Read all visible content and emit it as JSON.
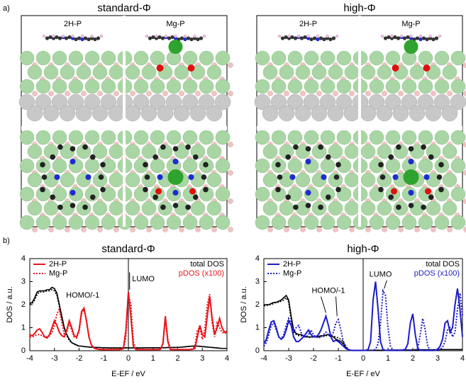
{
  "panel_labels": [
    "a)",
    "b)"
  ],
  "panel_a": [
    {
      "title": "standard-Φ",
      "labels": [
        "2H-P",
        "Mg-P"
      ]
    },
    {
      "title": "high-Φ",
      "labels": [
        "2H-P",
        "Mg-P"
      ]
    }
  ],
  "chart_data": [
    {
      "type": "line",
      "title": "standard-Φ",
      "xlabel": "E-EF / eV",
      "ylabel": "DOS / a.u.",
      "xlim": [
        -4,
        4
      ],
      "xticks": [
        -4,
        -3,
        -2,
        -1,
        0,
        1,
        2,
        3,
        4
      ],
      "ylim": [
        0,
        4
      ],
      "yticks": [
        0,
        1,
        2,
        3,
        4
      ],
      "total_label": "total DOS",
      "pdos_label": "pDOS (x100)",
      "pdos_color": "#e8141b",
      "annotations": [
        "HOMO/-1",
        "LUMO"
      ],
      "x": [
        -4,
        -3.9,
        -3.8,
        -3.7,
        -3.6,
        -3.5,
        -3.4,
        -3.3,
        -3.2,
        -3.1,
        -3,
        -2.9,
        -2.8,
        -2.7,
        -2.6,
        -2.5,
        -2.4,
        -2.3,
        -2.2,
        -2.1,
        -2,
        -1.9,
        -1.8,
        -1.7,
        -1.6,
        -1.5,
        -1.4,
        -1.3,
        -1.2,
        -1.1,
        -1,
        -0.9,
        -0.8,
        -0.7,
        -0.6,
        -0.5,
        -0.4,
        -0.3,
        -0.2,
        -0.1,
        0,
        0.1,
        0.2,
        0.3,
        0.4,
        0.5,
        0.6,
        0.7,
        0.8,
        0.9,
        1,
        1.1,
        1.2,
        1.3,
        1.4,
        1.5,
        1.6,
        1.7,
        1.8,
        1.9,
        2,
        2.1,
        2.2,
        2.3,
        2.4,
        2.5,
        2.6,
        2.7,
        2.8,
        2.9,
        3,
        3.1,
        3.2,
        3.3,
        3.4,
        3.5,
        3.6,
        3.7,
        3.8,
        3.9,
        4
      ],
      "series": [
        {
          "color": "#000000",
          "dashed": false,
          "values": [
            2.05,
            2.1,
            2.3,
            2.55,
            2.6,
            2.6,
            2.6,
            2.65,
            2.65,
            2.75,
            2.7,
            2.5,
            2.0,
            1.5,
            1.0,
            0.7,
            0.5,
            0.35,
            0.3,
            0.25,
            0.2,
            0.2,
            0.18,
            0.17,
            0.16,
            0.15,
            0.15,
            0.14,
            0.14,
            0.13,
            0.13,
            0.13,
            0.12,
            0.12,
            0.12,
            0.12,
            0.12,
            0.12,
            0.12,
            0.12,
            0.12,
            0.12,
            0.12,
            0.12,
            0.12,
            0.12,
            0.12,
            0.13,
            0.13,
            0.13,
            0.13,
            0.13,
            0.13,
            0.13,
            0.13,
            0.13,
            0.14,
            0.14,
            0.14,
            0.14,
            0.15,
            0.15,
            0.16,
            0.17,
            0.18,
            0.19,
            0.2,
            0.2,
            0.2,
            0.19,
            0.18,
            0.17,
            0.16,
            0.15,
            0.14,
            0.13,
            0.12,
            0.11,
            0.1,
            0.1,
            0.1
          ]
        },
        {
          "color": "#000000",
          "dashed": true,
          "values": [
            2.0,
            2.05,
            2.2,
            2.45,
            2.55,
            2.55,
            2.55,
            2.6,
            2.6,
            2.65,
            2.6,
            2.4,
            1.9,
            1.4,
            0.95,
            0.65,
            0.45,
            0.35,
            0.28,
            0.23,
            0.2,
            0.2,
            0.18,
            0.17,
            0.16,
            0.15,
            0.15,
            0.14,
            0.14,
            0.13,
            0.13,
            0.13,
            0.12,
            0.12,
            0.12,
            0.12,
            0.12,
            0.12,
            0.12,
            0.12,
            0.12,
            0.12,
            0.12,
            0.12,
            0.12,
            0.12,
            0.12,
            0.13,
            0.13,
            0.13,
            0.13,
            0.13,
            0.13,
            0.13,
            0.13,
            0.13,
            0.14,
            0.14,
            0.14,
            0.14,
            0.15,
            0.15,
            0.16,
            0.17,
            0.18,
            0.19,
            0.2,
            0.2,
            0.2,
            0.19,
            0.18,
            0.17,
            0.16,
            0.15,
            0.14,
            0.13,
            0.12,
            0.11,
            0.1,
            0.1,
            0.1
          ]
        },
        {
          "name": "2H-P",
          "color": "#e8141b",
          "dashed": false,
          "values": [
            0.7,
            0.65,
            0.75,
            0.9,
            0.95,
            0.8,
            0.6,
            0.55,
            0.7,
            1.0,
            1.3,
            1.1,
            0.8,
            0.65,
            0.6,
            0.9,
            1.3,
            1.0,
            0.65,
            0.6,
            0.9,
            1.7,
            1.85,
            1.3,
            0.6,
            0.25,
            0.12,
            0.08,
            0.06,
            0.05,
            0.05,
            0.05,
            0.05,
            0.05,
            0.05,
            0.05,
            0.05,
            0.06,
            0.1,
            0.9,
            2.55,
            1.5,
            0.2,
            0.06,
            0.05,
            0.05,
            0.05,
            0.05,
            0.05,
            0.05,
            0.05,
            0.05,
            0.05,
            0.06,
            0.3,
            1.5,
            0.4,
            0.06,
            0.05,
            0.05,
            0.05,
            0.05,
            0.05,
            0.05,
            0.05,
            0.05,
            0.06,
            0.1,
            0.6,
            1.1,
            0.7,
            0.6,
            1.5,
            2.35,
            1.4,
            0.7,
            1.0,
            1.4,
            1.0,
            0.8,
            0.85
          ]
        },
        {
          "name": "Mg-P",
          "color": "#e8141b",
          "dashed": true,
          "values": [
            0.6,
            0.6,
            0.65,
            0.7,
            0.7,
            0.65,
            0.6,
            0.6,
            0.65,
            0.8,
            1.1,
            1.6,
            1.8,
            1.2,
            0.7,
            0.8,
            1.2,
            0.9,
            0.6,
            0.55,
            0.85,
            1.6,
            1.8,
            1.3,
            0.6,
            0.25,
            0.12,
            0.08,
            0.06,
            0.05,
            0.05,
            0.05,
            0.05,
            0.05,
            0.05,
            0.05,
            0.05,
            0.06,
            0.08,
            0.6,
            2.4,
            2.0,
            0.4,
            0.06,
            0.05,
            0.05,
            0.05,
            0.05,
            0.05,
            0.05,
            0.05,
            0.05,
            0.05,
            0.06,
            0.3,
            1.4,
            0.5,
            0.06,
            0.05,
            0.05,
            0.05,
            0.05,
            0.05,
            0.05,
            0.05,
            0.05,
            0.08,
            0.2,
            0.9,
            1.0,
            0.5,
            0.9,
            2.0,
            2.45,
            1.2,
            0.6,
            1.2,
            1.0,
            0.8,
            0.75,
            0.8
          ]
        }
      ]
    },
    {
      "type": "line",
      "title": "high-Φ",
      "xlabel": "E-EF / eV",
      "ylabel": "DOS / a.u.",
      "xlim": [
        -4,
        4
      ],
      "xticks": [
        -4,
        -3,
        -2,
        -1,
        0,
        1,
        2,
        3,
        4
      ],
      "ylim": [
        0,
        4
      ],
      "yticks": [
        0,
        1,
        2,
        3,
        4
      ],
      "total_label": "total DOS",
      "pdos_label": "pDOS (x100)",
      "pdos_color": "#1c1cc8",
      "annotations": [
        "HOMO/-1",
        "LUMO"
      ],
      "x": [
        -4,
        -3.9,
        -3.8,
        -3.7,
        -3.6,
        -3.5,
        -3.4,
        -3.3,
        -3.2,
        -3.1,
        -3,
        -2.9,
        -2.8,
        -2.7,
        -2.6,
        -2.5,
        -2.4,
        -2.3,
        -2.2,
        -2.1,
        -2,
        -1.9,
        -1.8,
        -1.7,
        -1.6,
        -1.5,
        -1.4,
        -1.3,
        -1.2,
        -1.1,
        -1,
        -0.9,
        -0.8,
        -0.7,
        -0.6,
        -0.5,
        -0.4,
        -0.3,
        -0.2,
        -0.1,
        0,
        0.1,
        0.2,
        0.3,
        0.4,
        0.5,
        0.6,
        0.7,
        0.8,
        0.9,
        1,
        1.1,
        1.2,
        1.3,
        1.4,
        1.5,
        1.6,
        1.7,
        1.8,
        1.9,
        2,
        2.1,
        2.2,
        2.3,
        2.4,
        2.5,
        2.6,
        2.7,
        2.8,
        2.9,
        3,
        3.1,
        3.2,
        3.3,
        3.4,
        3.5,
        3.6,
        3.7,
        3.8,
        3.9,
        4
      ],
      "series": [
        {
          "color": "#000000",
          "dashed": false,
          "values": [
            2.0,
            2.0,
            2.0,
            2.05,
            2.1,
            2.1,
            2.15,
            2.2,
            2.3,
            2.4,
            2.2,
            1.5,
            0.9,
            0.75,
            0.7,
            0.7,
            0.65,
            0.6,
            0.6,
            0.6,
            0.6,
            0.6,
            0.62,
            0.65,
            0.65,
            0.68,
            0.7,
            0.65,
            0.6,
            0.5,
            0.45,
            0.4,
            0.3,
            0.15,
            0.05,
            0.02,
            0.01,
            0.01,
            0.01,
            0.01,
            0.01,
            0.02,
            0.02,
            0.02,
            0.02,
            0.02,
            0.02,
            0.02,
            0.02,
            0.02,
            0.02,
            0.03,
            0.03,
            0.03,
            0.03,
            0.03,
            0.03,
            0.03,
            0.03,
            0.03,
            0.03,
            0.04,
            0.04,
            0.04,
            0.04,
            0.04,
            0.04,
            0.04,
            0.04,
            0.04,
            0.04,
            0.05,
            0.05,
            0.05,
            0.05,
            0.05,
            0.05,
            0.05,
            0.05,
            0.05,
            0.05
          ]
        },
        {
          "color": "#000000",
          "dashed": true,
          "values": [
            1.95,
            1.95,
            2.0,
            2.0,
            2.05,
            2.1,
            2.1,
            2.15,
            2.2,
            2.3,
            2.1,
            1.3,
            0.85,
            0.7,
            0.65,
            0.65,
            0.6,
            0.6,
            0.58,
            0.58,
            0.6,
            0.6,
            0.6,
            0.62,
            0.62,
            0.65,
            0.65,
            0.65,
            0.62,
            0.6,
            0.55,
            0.5,
            0.4,
            0.2,
            0.06,
            0.02,
            0.01,
            0.01,
            0.01,
            0.01,
            0.01,
            0.02,
            0.02,
            0.02,
            0.02,
            0.02,
            0.02,
            0.02,
            0.02,
            0.02,
            0.02,
            0.03,
            0.03,
            0.03,
            0.03,
            0.03,
            0.03,
            0.03,
            0.03,
            0.03,
            0.03,
            0.04,
            0.04,
            0.04,
            0.04,
            0.04,
            0.04,
            0.04,
            0.04,
            0.04,
            0.04,
            0.05,
            0.05,
            0.05,
            0.05,
            0.05,
            0.05,
            0.05,
            0.05,
            0.05,
            0.05
          ]
        },
        {
          "name": "2H-P",
          "color": "#1c1cc8",
          "dashed": false,
          "values": [
            0.3,
            0.5,
            0.9,
            1.25,
            1.3,
            1.0,
            0.6,
            0.5,
            0.6,
            0.9,
            1.3,
            1.1,
            0.6,
            0.4,
            0.4,
            0.5,
            0.6,
            0.75,
            0.9,
            0.7,
            0.6,
            0.6,
            0.7,
            0.9,
            1.2,
            1.5,
            1.1,
            0.6,
            0.4,
            0.45,
            0.4,
            0.3,
            0.2,
            0.1,
            0.05,
            0.02,
            0.01,
            0.01,
            0.01,
            0.01,
            0.01,
            0.02,
            0.05,
            0.4,
            2.2,
            3.0,
            1.8,
            0.4,
            0.05,
            0.02,
            0.01,
            0.01,
            0.01,
            0.01,
            0.01,
            0.02,
            0.03,
            0.06,
            0.3,
            1.2,
            1.6,
            0.7,
            0.1,
            0.02,
            0.01,
            0.01,
            0.01,
            0.01,
            0.01,
            0.02,
            0.05,
            0.2,
            0.5,
            1.2,
            1.3,
            0.8,
            1.0,
            2.0,
            2.7,
            1.8,
            0.6
          ]
        },
        {
          "name": "Mg-P",
          "color": "#1c1cc8",
          "dashed": true,
          "values": [
            0.2,
            0.35,
            0.7,
            1.1,
            1.2,
            0.9,
            0.6,
            0.5,
            0.7,
            1.1,
            1.4,
            1.2,
            0.8,
            1.0,
            1.1,
            0.8,
            0.6,
            0.6,
            0.7,
            0.9,
            0.7,
            0.6,
            0.55,
            0.6,
            0.7,
            0.8,
            0.7,
            0.6,
            0.8,
            1.2,
            1.35,
            0.9,
            0.4,
            0.1,
            0.03,
            0.01,
            0.01,
            0.01,
            0.01,
            0.01,
            0.01,
            0.01,
            0.01,
            0.01,
            0.02,
            0.05,
            0.3,
            1.2,
            2.6,
            2.4,
            1.0,
            0.2,
            0.03,
            0.01,
            0.01,
            0.01,
            0.01,
            0.01,
            0.01,
            0.01,
            0.01,
            0.02,
            0.1,
            0.7,
            1.4,
            0.9,
            0.2,
            0.03,
            0.01,
            0.01,
            0.02,
            0.05,
            0.15,
            0.4,
            0.9,
            1.0,
            0.6,
            0.8,
            1.8,
            2.5,
            1.5
          ]
        }
      ]
    }
  ]
}
